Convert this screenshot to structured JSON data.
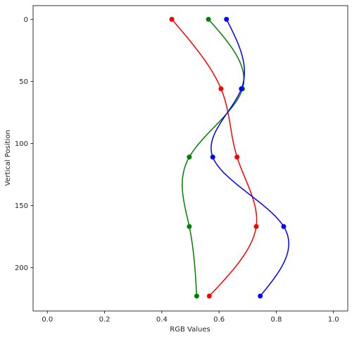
{
  "chart_data": {
    "type": "line",
    "title": "",
    "xlabel": "RGB Values",
    "ylabel": "Vertical Position",
    "xlim": [
      -0.05,
      1.05
    ],
    "ylim": [
      235,
      -11
    ],
    "y_inverted": true,
    "grid": false,
    "xticks": [
      "0.0",
      "0.2",
      "0.4",
      "0.6",
      "0.8",
      "1.0"
    ],
    "xtick_values": [
      0.0,
      0.2,
      0.4,
      0.6,
      0.8,
      1.0
    ],
    "yticks": [
      "0",
      "50",
      "100",
      "150",
      "200"
    ],
    "ytick_values": [
      0,
      50,
      100,
      150,
      200
    ],
    "curve": "smooth",
    "marker": "circle",
    "series": [
      {
        "color": "#ff0000",
        "points": [
          {
            "x": 0.435,
            "y": 0
          },
          {
            "x": 0.607,
            "y": 56
          },
          {
            "x": 0.663,
            "y": 111
          },
          {
            "x": 0.73,
            "y": 167
          },
          {
            "x": 0.566,
            "y": 223
          }
        ]
      },
      {
        "color": "#008000",
        "points": [
          {
            "x": 0.563,
            "y": 0
          },
          {
            "x": 0.682,
            "y": 56
          },
          {
            "x": 0.496,
            "y": 111
          },
          {
            "x": 0.496,
            "y": 167
          },
          {
            "x": 0.522,
            "y": 223
          }
        ]
      },
      {
        "color": "#0000ff",
        "points": [
          {
            "x": 0.626,
            "y": 0
          },
          {
            "x": 0.678,
            "y": 56
          },
          {
            "x": 0.578,
            "y": 111
          },
          {
            "x": 0.826,
            "y": 167
          },
          {
            "x": 0.744,
            "y": 223
          }
        ]
      }
    ]
  }
}
